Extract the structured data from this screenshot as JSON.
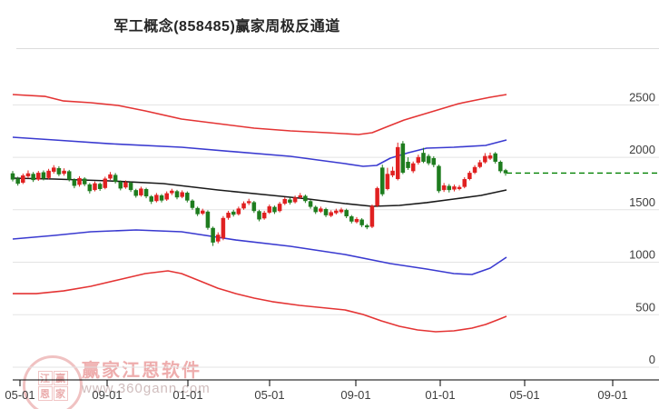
{
  "title": "军工概念(858485)赢家周极反通道",
  "watermark": {
    "brand": "赢家江恩软件",
    "url": "www.360gann.com",
    "logo_chars": [
      "江",
      "赢",
      "恩",
      "家"
    ]
  },
  "colors": {
    "up_candle": "#e02020",
    "down_candle": "#1e7c1e",
    "channel_red": "#e43434",
    "channel_blue": "#3a3ad0",
    "channel_black": "#1a1a1a",
    "last_close_dash": "#008000",
    "gridline": "#e3e3e3",
    "axis": "#000000",
    "tick_label": "#3d3d3d"
  },
  "chart_data": {
    "type": "candlestick",
    "title": "军工概念(858485)赢家周极反通道",
    "period": "weekly",
    "grid": true,
    "y_axis": {
      "side": "right",
      "ticks": [
        0,
        500,
        1000,
        1500,
        2000,
        2500
      ],
      "tick_labels": [
        "0",
        "500",
        "1000",
        "1500",
        "2000",
        "2500"
      ],
      "range": [
        0,
        3030
      ]
    },
    "x_axis": {
      "tick_labels": [
        "05-01",
        "09-01",
        "01-01",
        "05-01",
        "09-01",
        "01-01",
        "05-01",
        "09-01"
      ]
    },
    "last_close_line": {
      "value": 1850,
      "style": "dashed"
    },
    "candles_ohlc": [
      [
        1845,
        1870,
        1770,
        1790
      ],
      [
        1795,
        1815,
        1730,
        1750
      ],
      [
        1760,
        1845,
        1745,
        1825
      ],
      [
        1820,
        1875,
        1800,
        1845
      ],
      [
        1840,
        1860,
        1765,
        1785
      ],
      [
        1790,
        1870,
        1775,
        1850
      ],
      [
        1855,
        1875,
        1780,
        1800
      ],
      [
        1805,
        1890,
        1790,
        1870
      ],
      [
        1865,
        1925,
        1845,
        1900
      ],
      [
        1895,
        1915,
        1820,
        1840
      ],
      [
        1845,
        1895,
        1825,
        1870
      ],
      [
        1865,
        1880,
        1770,
        1790
      ],
      [
        1785,
        1800,
        1705,
        1730
      ],
      [
        1740,
        1820,
        1720,
        1800
      ],
      [
        1795,
        1810,
        1725,
        1745
      ],
      [
        1740,
        1755,
        1655,
        1680
      ],
      [
        1690,
        1770,
        1675,
        1750
      ],
      [
        1745,
        1760,
        1680,
        1700
      ],
      [
        1710,
        1815,
        1695,
        1795
      ],
      [
        1800,
        1860,
        1785,
        1835
      ],
      [
        1830,
        1850,
        1750,
        1770
      ],
      [
        1765,
        1780,
        1685,
        1705
      ],
      [
        1715,
        1780,
        1700,
        1760
      ],
      [
        1755,
        1770,
        1670,
        1690
      ],
      [
        1685,
        1700,
        1615,
        1635
      ],
      [
        1640,
        1720,
        1625,
        1700
      ],
      [
        1695,
        1710,
        1610,
        1630
      ],
      [
        1625,
        1640,
        1555,
        1580
      ],
      [
        1585,
        1660,
        1570,
        1640
      ],
      [
        1635,
        1650,
        1570,
        1590
      ],
      [
        1600,
        1675,
        1585,
        1655
      ],
      [
        1660,
        1700,
        1640,
        1680
      ],
      [
        1675,
        1690,
        1600,
        1620
      ],
      [
        1625,
        1685,
        1610,
        1665
      ],
      [
        1660,
        1675,
        1570,
        1590
      ],
      [
        1585,
        1600,
        1500,
        1520
      ],
      [
        1515,
        1530,
        1440,
        1460
      ],
      [
        1465,
        1510,
        1450,
        1490
      ],
      [
        1480,
        1495,
        1310,
        1330
      ],
      [
        1325,
        1340,
        1155,
        1190
      ],
      [
        1200,
        1285,
        1180,
        1260
      ],
      [
        1230,
        1440,
        1210,
        1420
      ],
      [
        1425,
        1490,
        1405,
        1470
      ],
      [
        1480,
        1500,
        1435,
        1455
      ],
      [
        1460,
        1530,
        1445,
        1510
      ],
      [
        1515,
        1580,
        1500,
        1560
      ],
      [
        1565,
        1605,
        1545,
        1580
      ],
      [
        1570,
        1585,
        1470,
        1490
      ],
      [
        1485,
        1500,
        1390,
        1410
      ],
      [
        1420,
        1490,
        1405,
        1470
      ],
      [
        1475,
        1550,
        1460,
        1530
      ],
      [
        1525,
        1540,
        1460,
        1480
      ],
      [
        1490,
        1575,
        1475,
        1555
      ],
      [
        1560,
        1620,
        1545,
        1600
      ],
      [
        1595,
        1615,
        1550,
        1570
      ],
      [
        1575,
        1635,
        1560,
        1615
      ],
      [
        1620,
        1660,
        1605,
        1635
      ],
      [
        1630,
        1645,
        1565,
        1585
      ],
      [
        1580,
        1595,
        1510,
        1530
      ],
      [
        1525,
        1540,
        1460,
        1480
      ],
      [
        1485,
        1530,
        1470,
        1510
      ],
      [
        1505,
        1520,
        1430,
        1450
      ],
      [
        1445,
        1495,
        1430,
        1475
      ],
      [
        1470,
        1510,
        1455,
        1490
      ],
      [
        1480,
        1520,
        1465,
        1500
      ],
      [
        1495,
        1510,
        1420,
        1440
      ],
      [
        1435,
        1450,
        1370,
        1390
      ],
      [
        1385,
        1430,
        1370,
        1410
      ],
      [
        1405,
        1420,
        1335,
        1355
      ],
      [
        1350,
        1365,
        1315,
        1335
      ],
      [
        1340,
        1550,
        1325,
        1535
      ],
      [
        1540,
        1720,
        1525,
        1705
      ],
      [
        1900,
        1930,
        1630,
        1650
      ],
      [
        1700,
        1900,
        1685,
        1840
      ],
      [
        1830,
        1910,
        1810,
        1870
      ],
      [
        1795,
        2140,
        1780,
        2095
      ],
      [
        2130,
        2155,
        1840,
        1855
      ],
      [
        1955,
        2000,
        1880,
        1900
      ],
      [
        1870,
        1960,
        1850,
        1940
      ],
      [
        1950,
        2025,
        1930,
        2000
      ],
      [
        2040,
        2090,
        1945,
        1960
      ],
      [
        2010,
        2030,
        1925,
        1945
      ],
      [
        1990,
        2010,
        1905,
        1930
      ],
      [
        1915,
        1930,
        1660,
        1680
      ],
      [
        1690,
        1755,
        1670,
        1730
      ],
      [
        1725,
        1745,
        1665,
        1690
      ],
      [
        1695,
        1740,
        1675,
        1720
      ],
      [
        1700,
        1735,
        1685,
        1715
      ],
      [
        1720,
        1810,
        1705,
        1790
      ],
      [
        1795,
        1870,
        1780,
        1850
      ],
      [
        1855,
        1925,
        1840,
        1905
      ],
      [
        1910,
        1975,
        1895,
        1950
      ],
      [
        1955,
        2040,
        1940,
        2010
      ],
      [
        1990,
        2045,
        1975,
        2015
      ],
      [
        2035,
        2050,
        1940,
        1960
      ],
      [
        1955,
        1970,
        1850,
        1870
      ],
      [
        1875,
        1890,
        1825,
        1850
      ]
    ],
    "channels": {
      "upper_red": [
        [
          14,
          2598
        ],
        [
          50,
          2580
        ],
        [
          70,
          2537
        ],
        [
          100,
          2520
        ],
        [
          130,
          2494
        ],
        [
          160,
          2442
        ],
        [
          200,
          2364
        ],
        [
          240,
          2321
        ],
        [
          280,
          2278
        ],
        [
          320,
          2252
        ],
        [
          360,
          2234
        ],
        [
          395,
          2217
        ],
        [
          410,
          2234
        ],
        [
          425,
          2286
        ],
        [
          445,
          2355
        ],
        [
          465,
          2407
        ],
        [
          485,
          2459
        ],
        [
          505,
          2511
        ],
        [
          525,
          2546
        ],
        [
          540,
          2572
        ],
        [
          558,
          2598
        ]
      ],
      "upper_blue": [
        [
          14,
          2191
        ],
        [
          60,
          2165
        ],
        [
          120,
          2130
        ],
        [
          200,
          2096
        ],
        [
          260,
          2052
        ],
        [
          320,
          2009
        ],
        [
          380,
          1940
        ],
        [
          400,
          1914
        ],
        [
          415,
          1923
        ],
        [
          430,
          1992
        ],
        [
          450,
          2044
        ],
        [
          470,
          2087
        ],
        [
          500,
          2096
        ],
        [
          535,
          2113
        ],
        [
          558,
          2165
        ]
      ],
      "middle_black": [
        [
          14,
          1801
        ],
        [
          60,
          1793
        ],
        [
          120,
          1775
        ],
        [
          180,
          1749
        ],
        [
          240,
          1689
        ],
        [
          300,
          1637
        ],
        [
          340,
          1602
        ],
        [
          380,
          1559
        ],
        [
          410,
          1533
        ],
        [
          440,
          1542
        ],
        [
          470,
          1568
        ],
        [
          500,
          1602
        ],
        [
          530,
          1637
        ],
        [
          558,
          1689
        ]
      ],
      "lower_blue": [
        [
          14,
          1221
        ],
        [
          60,
          1256
        ],
        [
          100,
          1290
        ],
        [
          150,
          1308
        ],
        [
          200,
          1290
        ],
        [
          260,
          1212
        ],
        [
          320,
          1152
        ],
        [
          380,
          1074
        ],
        [
          430,
          987
        ],
        [
          470,
          935
        ],
        [
          500,
          892
        ],
        [
          520,
          883
        ],
        [
          540,
          944
        ],
        [
          558,
          1048
        ]
      ],
      "lower_red": [
        [
          14,
          701
        ],
        [
          40,
          701
        ],
        [
          70,
          727
        ],
        [
          100,
          771
        ],
        [
          130,
          831
        ],
        [
          160,
          892
        ],
        [
          185,
          918
        ],
        [
          200,
          892
        ],
        [
          220,
          823
        ],
        [
          240,
          753
        ],
        [
          260,
          701
        ],
        [
          280,
          658
        ],
        [
          300,
          624
        ],
        [
          330,
          589
        ],
        [
          360,
          563
        ],
        [
          380,
          546
        ],
        [
          400,
          502
        ],
        [
          420,
          442
        ],
        [
          440,
          390
        ],
        [
          460,
          355
        ],
        [
          480,
          338
        ],
        [
          500,
          346
        ],
        [
          520,
          372
        ],
        [
          535,
          407
        ],
        [
          548,
          450
        ],
        [
          558,
          485
        ]
      ]
    }
  }
}
